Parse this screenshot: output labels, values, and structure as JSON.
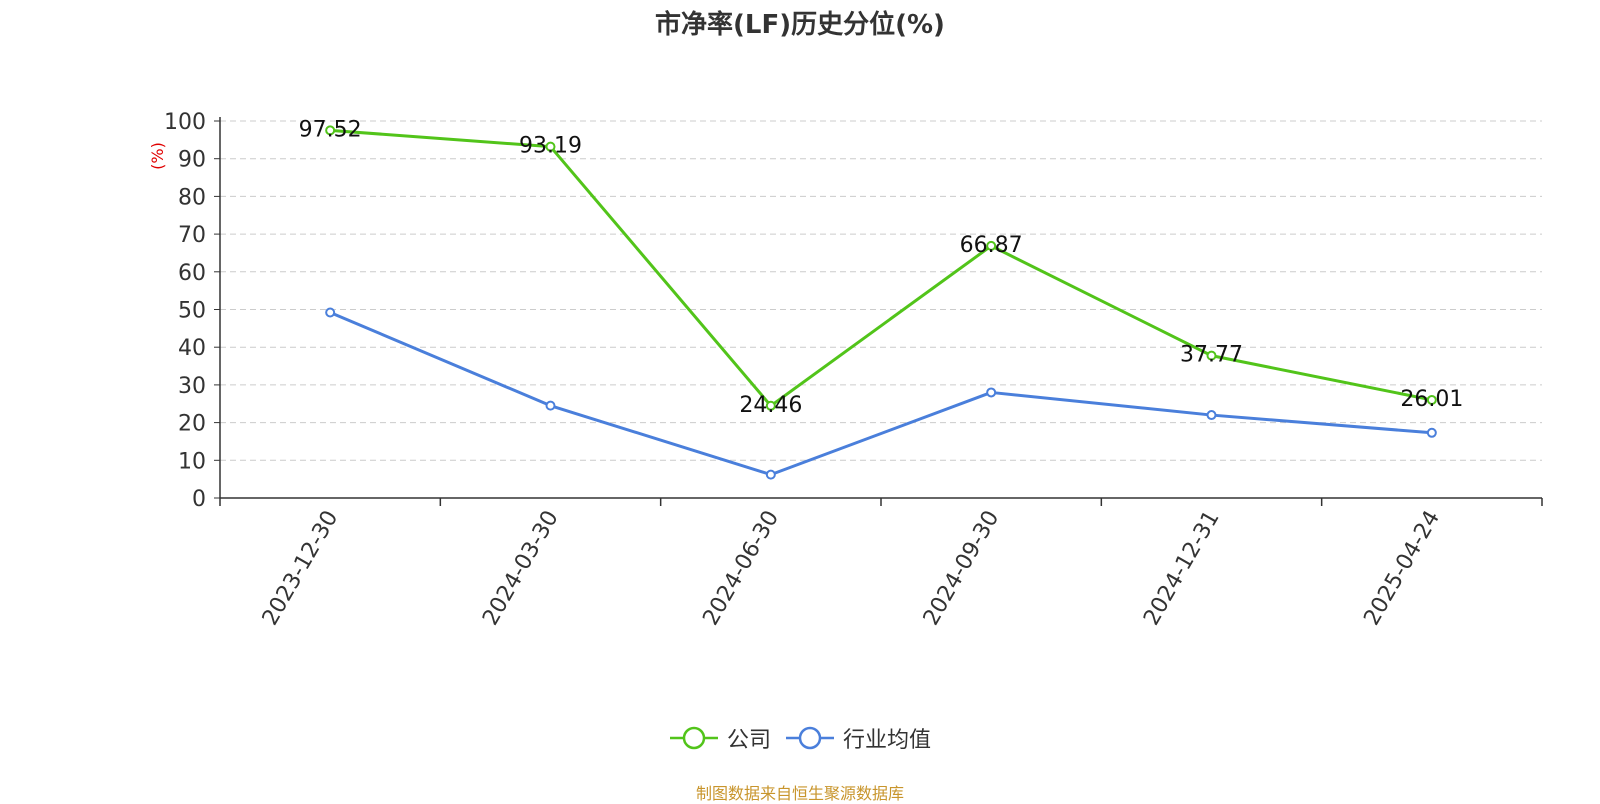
{
  "chart_data": {
    "type": "line",
    "title": "市净率(LF)历史分位(%)",
    "ylabel": "(%)",
    "xlabel": "",
    "categories": [
      "2023-12-30",
      "2024-03-30",
      "2024-06-30",
      "2024-09-30",
      "2024-12-31",
      "2025-04-24"
    ],
    "series": [
      {
        "name": "公司",
        "color": "#52c41a",
        "values": [
          97.52,
          93.19,
          24.46,
          66.87,
          37.77,
          26.01
        ],
        "show_labels": true
      },
      {
        "name": "行业均值",
        "color": "#4a7fdb",
        "values": [
          49.2,
          24.5,
          6.2,
          28.0,
          22.0,
          17.3
        ],
        "show_labels": false
      }
    ],
    "ylim": [
      0,
      100
    ],
    "yticks": [
      0,
      10,
      20,
      30,
      40,
      50,
      60,
      70,
      80,
      90,
      100
    ],
    "grid": "horizontal-dashed",
    "legend_position": "bottom-center",
    "ylabel_color": "#e00000"
  },
  "source_note": "制图数据来自恒生聚源数据库"
}
